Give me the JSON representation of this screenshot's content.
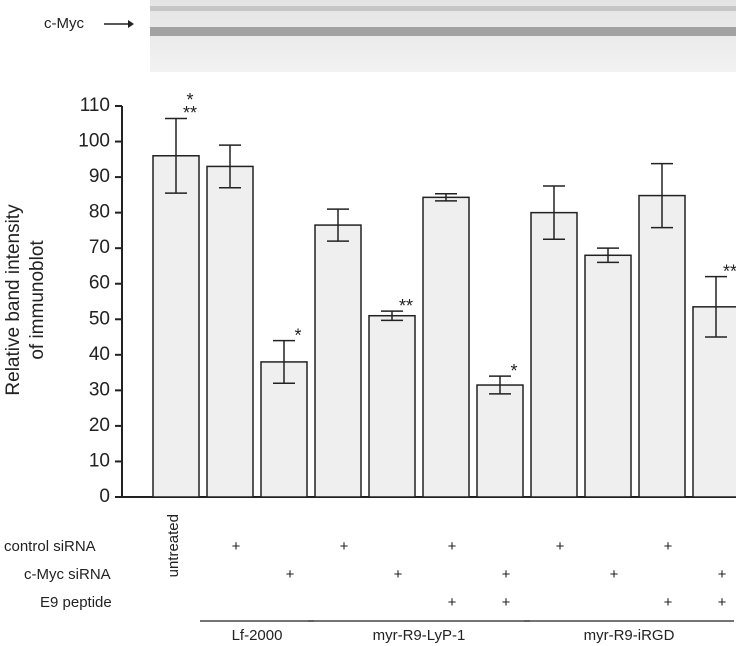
{
  "chart_data": {
    "type": "bar",
    "blot_label": "c-Myc",
    "ylabel": [
      "Relative band intensity",
      "of immunoblot"
    ],
    "categories": [
      "untreated",
      null,
      null,
      null,
      null,
      null,
      null,
      null,
      null,
      null,
      null
    ],
    "values": [
      96,
      93,
      38,
      76.5,
      51,
      84.3,
      31.5,
      80,
      68,
      84.8,
      53.5
    ],
    "errors": [
      10.5,
      6,
      6,
      4.5,
      1.3,
      1,
      2.5,
      7.5,
      2,
      9,
      8.5
    ],
    "color": "#efefef",
    "ylim": [
      0,
      110
    ],
    "yticks": [
      0,
      10,
      20,
      30,
      40,
      50,
      60,
      70,
      80,
      90,
      100,
      110
    ],
    "annotations": [
      {
        "index": 0,
        "text": "*"
      },
      {
        "index": 0,
        "text": "**"
      },
      {
        "index": 2,
        "text": "*"
      },
      {
        "index": 4,
        "text": "**"
      },
      {
        "index": 6,
        "text": "*"
      },
      {
        "index": 10,
        "text": "**"
      }
    ],
    "conditions": [
      {
        "name": "control siRNA",
        "marks": [
          null,
          "+",
          null,
          "+",
          null,
          "+",
          null,
          "+",
          null,
          "+",
          null
        ]
      },
      {
        "name": "c-Myc siRNA",
        "marks": [
          null,
          null,
          "+",
          null,
          "+",
          null,
          "+",
          null,
          "+",
          null,
          "+"
        ]
      },
      {
        "name": "E9 peptide",
        "marks": [
          null,
          null,
          null,
          null,
          null,
          "+",
          "+",
          null,
          null,
          "+",
          "+"
        ]
      }
    ],
    "groups": [
      {
        "label": "Lf-2000",
        "from": 1,
        "to": 2
      },
      {
        "label": "myr-R9-LyP-1",
        "from": 3,
        "to": 6
      },
      {
        "label": "myr-R9-iRGD",
        "from": 7,
        "to": 10
      }
    ]
  }
}
